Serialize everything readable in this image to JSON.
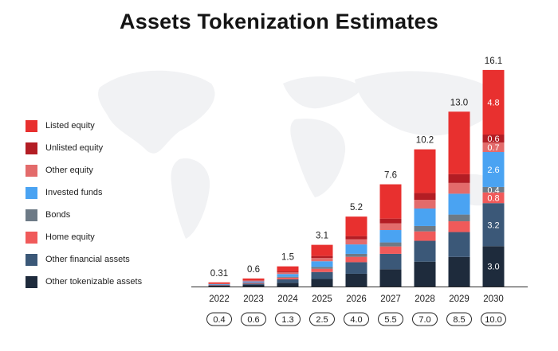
{
  "title": "Assets Tokenization Estimates",
  "chart_data": {
    "type": "bar",
    "stacked": true,
    "title": "Assets Tokenization Estimates",
    "xlabel": "",
    "ylabel": "",
    "categories": [
      "2022",
      "2023",
      "2024",
      "2025",
      "2026",
      "2027",
      "2028",
      "2029",
      "2030"
    ],
    "totals": [
      0.31,
      0.6,
      1.5,
      3.1,
      5.2,
      7.6,
      10.2,
      13.0,
      16.1
    ],
    "total_labels": [
      "0.31",
      "0.6",
      "1.5",
      "3.1",
      "5.2",
      "7.6",
      "10.2",
      "13.0",
      "16.1"
    ],
    "secondary_values": [
      "0.4",
      "0.6",
      "1.3",
      "2.5",
      "4.0",
      "5.5",
      "7.0",
      "8.5",
      "10.0"
    ],
    "legend_position": "left",
    "series": [
      {
        "name": "Other tokenizable assets",
        "color": "#1e2b3c",
        "values": [
          0.06,
          0.12,
          0.28,
          0.56,
          0.95,
          1.28,
          1.85,
          2.2,
          3.0
        ],
        "labels": [
          "",
          "",
          "",
          "",
          "",
          "",
          "",
          "",
          "3.0"
        ]
      },
      {
        "name": "Other financial assets",
        "color": "#3b5878",
        "values": [
          0.04,
          0.1,
          0.26,
          0.52,
          0.86,
          1.15,
          1.55,
          1.85,
          3.2
        ],
        "labels": [
          "",
          "",
          "",
          "",
          "",
          "",
          "",
          "",
          "3.2"
        ]
      },
      {
        "name": "Home equity",
        "color": "#f05a5a",
        "values": [
          0.02,
          0.05,
          0.12,
          0.24,
          0.4,
          0.55,
          0.7,
          0.8,
          0.8
        ],
        "labels": [
          "",
          "",
          "",
          "",
          "",
          "",
          "",
          "",
          "0.8"
        ]
      },
      {
        "name": "Bonds",
        "color": "#6d7a86",
        "values": [
          0.02,
          0.03,
          0.07,
          0.14,
          0.22,
          0.3,
          0.4,
          0.5,
          0.4
        ],
        "labels": [
          "",
          "",
          "",
          "",
          "",
          "",
          "",
          "",
          "0.4"
        ]
      },
      {
        "name": "Invested funds",
        "color": "#4aa3f2",
        "values": [
          0.04,
          0.08,
          0.2,
          0.42,
          0.7,
          0.92,
          1.3,
          1.55,
          2.6
        ],
        "labels": [
          "",
          "",
          "",
          "",
          "",
          "",
          "",
          "",
          "2.6"
        ]
      },
      {
        "name": "Other equity",
        "color": "#e36b6b",
        "values": [
          0.02,
          0.05,
          0.12,
          0.24,
          0.38,
          0.5,
          0.65,
          0.8,
          0.7
        ],
        "labels": [
          "",
          "",
          "",
          "",
          "",
          "",
          "",
          "",
          "0.7"
        ]
      },
      {
        "name": "Unlisted equity",
        "color": "#b31d24",
        "values": [
          0.01,
          0.03,
          0.07,
          0.15,
          0.24,
          0.35,
          0.5,
          0.65,
          0.6
        ],
        "labels": [
          "",
          "",
          "",
          "",
          "",
          "",
          "",
          "",
          "0.6"
        ]
      },
      {
        "name": "Listed equity",
        "color": "#e8302f",
        "values": [
          0.1,
          0.14,
          0.38,
          0.83,
          1.45,
          2.55,
          3.25,
          4.65,
          4.8
        ],
        "labels": [
          "",
          "",
          "",
          "",
          "",
          "",
          "",
          "",
          "4.8"
        ]
      }
    ]
  },
  "legend": {
    "items": [
      {
        "label": "Listed equity",
        "color": "#e8302f"
      },
      {
        "label": "Unlisted equity",
        "color": "#b31d24"
      },
      {
        "label": "Other equity",
        "color": "#e36b6b"
      },
      {
        "label": "Invested funds",
        "color": "#4aa3f2"
      },
      {
        "label": "Bonds",
        "color": "#6d7a86"
      },
      {
        "label": "Home equity",
        "color": "#f05a5a"
      },
      {
        "label": "Other financial assets",
        "color": "#3b5878"
      },
      {
        "label": "Other tokenizable assets",
        "color": "#1e2b3c"
      }
    ]
  }
}
